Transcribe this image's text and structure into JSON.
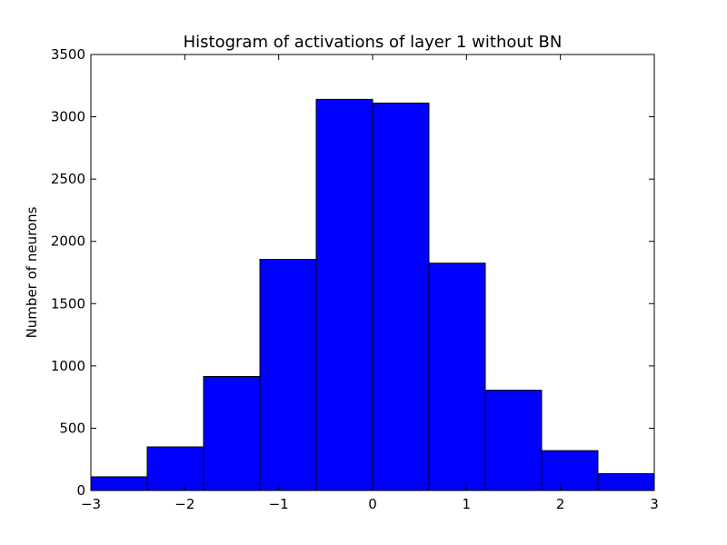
{
  "chart_data": {
    "type": "bar",
    "title": "Histogram of activations of layer 1  without BN",
    "xlabel": "",
    "ylabel": "Number of neurons",
    "xlim": [
      -3,
      3
    ],
    "ylim": [
      0,
      3500
    ],
    "bins": [
      {
        "x0": -3.0,
        "x1": -2.4,
        "value": 110
      },
      {
        "x0": -2.4,
        "x1": -1.8,
        "value": 350
      },
      {
        "x0": -1.8,
        "x1": -1.2,
        "value": 915
      },
      {
        "x0": -1.2,
        "x1": -0.6,
        "value": 1855
      },
      {
        "x0": -0.6,
        "x1": 0.0,
        "value": 3140
      },
      {
        "x0": 0.0,
        "x1": 0.6,
        "value": 3110
      },
      {
        "x0": 0.6,
        "x1": 1.2,
        "value": 1825
      },
      {
        "x0": 1.2,
        "x1": 1.8,
        "value": 805
      },
      {
        "x0": 1.8,
        "x1": 2.4,
        "value": 320
      },
      {
        "x0": 2.4,
        "x1": 3.0,
        "value": 135
      }
    ],
    "x_ticks": [
      -3,
      -2,
      -1,
      0,
      1,
      2,
      3
    ],
    "x_tick_labels": [
      "−3",
      "−2",
      "−1",
      "0",
      "1",
      "2",
      "3"
    ],
    "y_ticks": [
      0,
      500,
      1000,
      1500,
      2000,
      2500,
      3000,
      3500
    ],
    "y_tick_labels": [
      "0",
      "500",
      "1000",
      "1500",
      "2000",
      "2500",
      "3000",
      "3500"
    ],
    "bar_color": "#0000ff",
    "edge_color": "#000000",
    "grid": false
  }
}
